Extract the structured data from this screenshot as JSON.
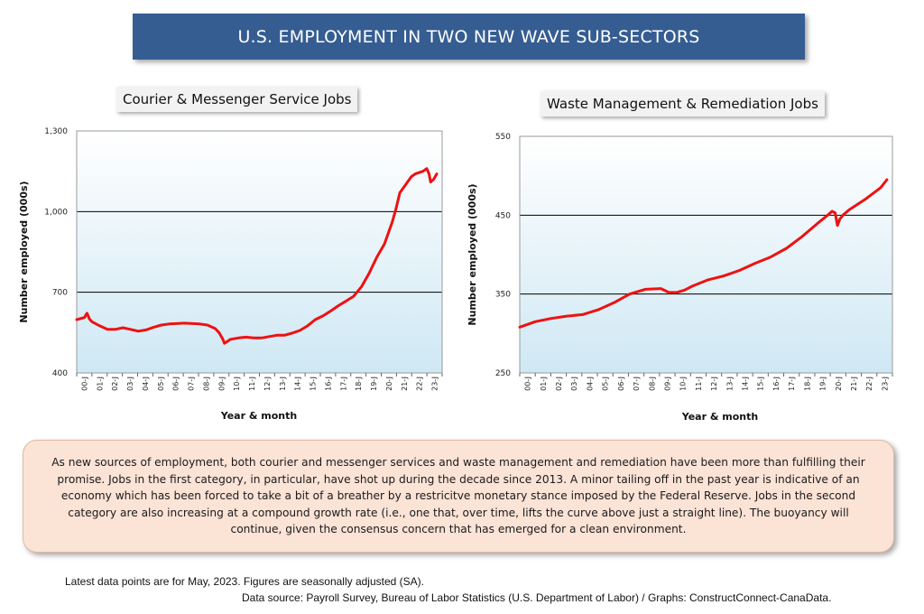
{
  "header": {
    "title": "U.S. EMPLOYMENT IN TWO NEW WAVE SUB-SECTORS"
  },
  "colors": {
    "line": "#ee1111",
    "banner": "#355d92",
    "plot_top": "#ffffff",
    "plot_bottom": "#cfe8f4"
  },
  "chart_data": [
    {
      "type": "line",
      "title": "Courier & Messenger Service Jobs",
      "xlabel": "Year & month",
      "ylabel": "Number employed (000s)",
      "ylim": [
        400,
        1300
      ],
      "yticks": [
        400,
        700,
        1000,
        1300
      ],
      "ytick_labels": [
        "400",
        "700",
        "1,000",
        "1,300"
      ],
      "gridlines_at": [
        700,
        1000
      ],
      "xlim": [
        2000.0,
        2023.75
      ],
      "xtick_labels": [
        "00-J",
        "01-J",
        "02-J",
        "03-J",
        "04-J",
        "05-J",
        "06-J",
        "07-J",
        "08-J",
        "09-J",
        "10-J",
        "11-J",
        "12-J",
        "13-J",
        "14-J",
        "15-J",
        "16-J",
        "17-J",
        "18-J",
        "19-J",
        "20-J",
        "21-J",
        "22-J",
        "23-J"
      ],
      "series": [
        {
          "name": "Courier & Messenger Service Jobs",
          "x": [
            2000.0,
            2000.5,
            2000.67,
            2000.83,
            2001.0,
            2001.5,
            2002.0,
            2002.5,
            2003.0,
            2003.5,
            2004.0,
            2004.5,
            2005.0,
            2005.5,
            2006.0,
            2007.0,
            2008.0,
            2008.5,
            2009.0,
            2009.25,
            2009.5,
            2009.6,
            2010.0,
            2010.5,
            2011.0,
            2011.5,
            2012.0,
            2012.5,
            2013.0,
            2013.5,
            2014.0,
            2014.5,
            2015.0,
            2015.5,
            2016.0,
            2016.5,
            2017.0,
            2017.5,
            2018.0,
            2018.5,
            2019.0,
            2019.5,
            2020.0,
            2020.25,
            2020.5,
            2020.75,
            2021.0,
            2021.25,
            2021.5,
            2021.75,
            2022.0,
            2022.5,
            2022.75,
            2022.9,
            2023.0,
            2023.2,
            2023.4
          ],
          "values": [
            598,
            606,
            622,
            600,
            590,
            575,
            562,
            562,
            568,
            562,
            555,
            560,
            570,
            578,
            582,
            585,
            582,
            578,
            565,
            550,
            525,
            510,
            525,
            530,
            533,
            530,
            530,
            535,
            540,
            540,
            548,
            558,
            575,
            598,
            612,
            630,
            650,
            667,
            685,
            720,
            770,
            830,
            880,
            920,
            960,
            1010,
            1070,
            1090,
            1110,
            1130,
            1140,
            1150,
            1160,
            1140,
            1110,
            1120,
            1140
          ]
        }
      ]
    },
    {
      "type": "line",
      "title": "Waste Management & Remediation Jobs",
      "xlabel": "Year & month",
      "ylabel": "Number employed (000s)",
      "ylim": [
        250,
        550
      ],
      "yticks": [
        250,
        350,
        450,
        550
      ],
      "ytick_labels": [
        "250",
        "350",
        "450",
        "550"
      ],
      "gridlines_at": [
        350,
        450
      ],
      "xlim": [
        2000.0,
        2023.75
      ],
      "xtick_labels": [
        "00-J",
        "01-J",
        "02-J",
        "03-J",
        "04-J",
        "05-J",
        "06-J",
        "07-J",
        "08-J",
        "09-J",
        "10-J",
        "11-J",
        "12-J",
        "13-J",
        "14-J",
        "15-J",
        "16-J",
        "17-J",
        "18-J",
        "19-J",
        "20-J",
        "21-J",
        "22-J",
        "23-J"
      ],
      "series": [
        {
          "name": "Waste Management & Remediation Jobs",
          "x": [
            2000.0,
            2001.0,
            2002.0,
            2003.0,
            2004.0,
            2005.0,
            2006.0,
            2007.0,
            2008.0,
            2009.0,
            2009.5,
            2010.0,
            2010.5,
            2011.0,
            2012.0,
            2013.0,
            2014.0,
            2015.0,
            2016.0,
            2017.0,
            2018.0,
            2019.0,
            2019.5,
            2019.9,
            2020.1,
            2020.25,
            2020.4,
            2020.6,
            2021.0,
            2022.0,
            2023.0,
            2023.4
          ],
          "values": [
            308,
            315,
            319,
            322,
            324,
            330,
            339,
            350,
            356,
            357,
            352,
            352,
            355,
            360,
            368,
            373,
            380,
            389,
            397,
            408,
            423,
            440,
            448,
            455,
            453,
            437,
            445,
            450,
            457,
            470,
            485,
            495
          ]
        }
      ]
    }
  ],
  "note": "As new sources of employment, both courier and messenger services and waste management and remediation have been more than fulfilling their promise. Jobs in the first category, in particular, have shot up during the decade since 2013. A minor tailing off in the past year is indicative of an economy which has been forced to take a bit of a breather by a restricitve monetary stance imposed by the Federal Reserve. Jobs in the second category are also increasing at a compound growth rate (i.e., one that, over time, lifts the curve above just a straight line). The buoyancy will continue, given the consensus concern that has emerged for a clean environment.",
  "footer": {
    "line1": "Latest data points are for May, 2023. Figures are seasonally adjusted (SA).",
    "line2": "Data source: Payroll Survey, Bureau of Labor Statistics (U.S. Department of Labor) / Graphs: ConstructConnect-CanaData."
  }
}
